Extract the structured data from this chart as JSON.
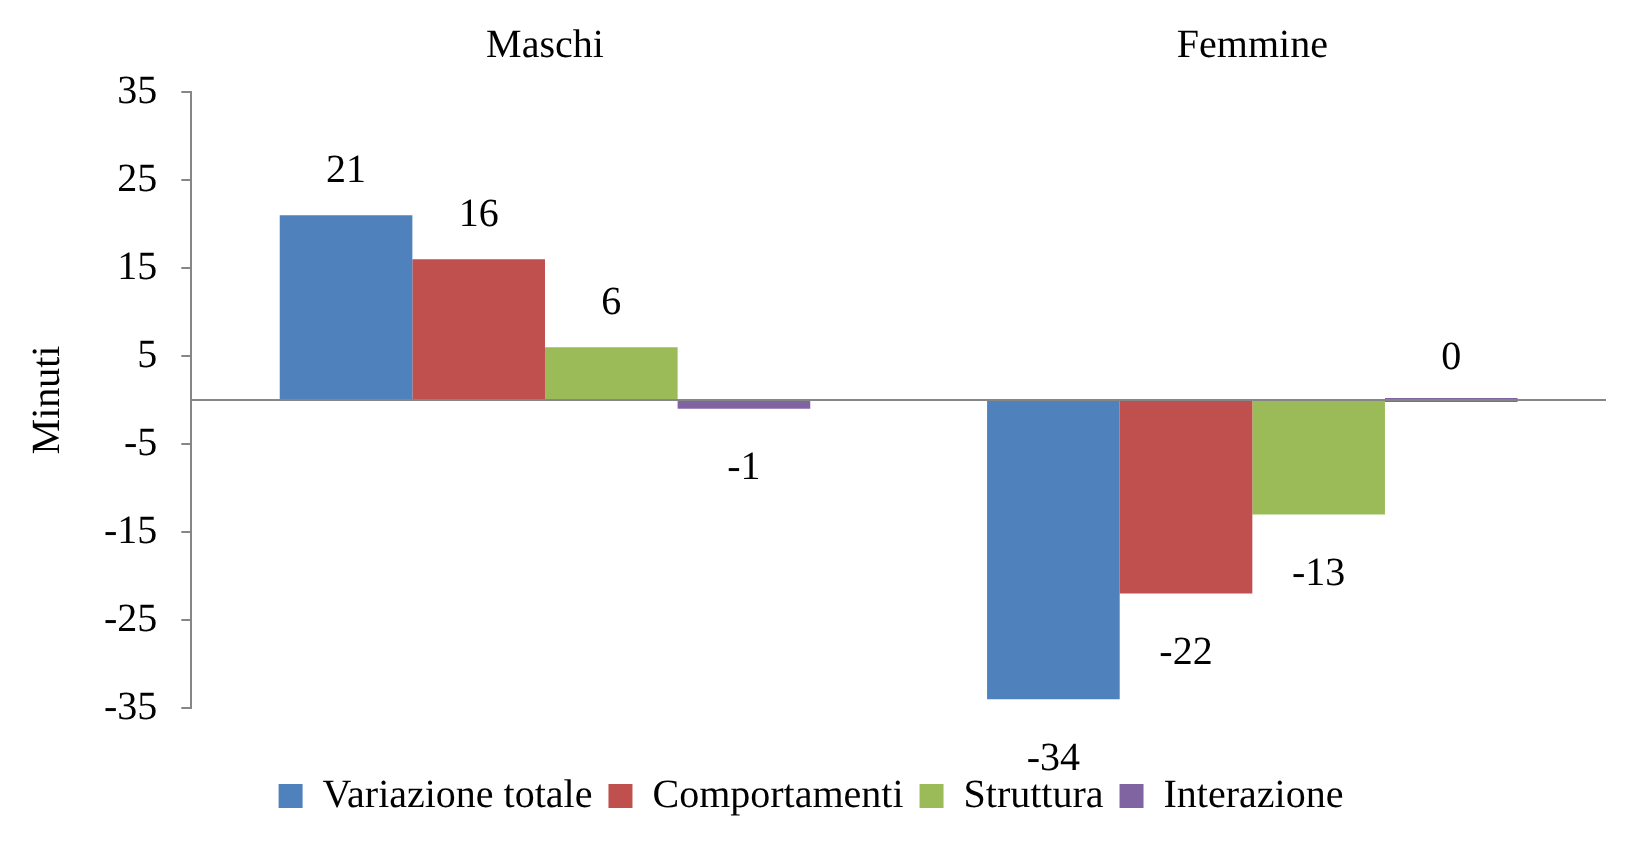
{
  "chart_data": {
    "type": "bar",
    "ylabel": "Minuti",
    "categories": [
      "Maschi",
      "Femmine"
    ],
    "series": [
      {
        "name": "Variazione totale",
        "color": "#4f81bd",
        "values": [
          21,
          -34
        ]
      },
      {
        "name": "Comportamenti",
        "color": "#c0504d",
        "values": [
          16,
          -22
        ]
      },
      {
        "name": "Struttura",
        "color": "#9bbb59",
        "values": [
          6,
          -13
        ]
      },
      {
        "name": "Interazione",
        "color": "#8064a2",
        "values": [
          -1,
          0
        ]
      }
    ],
    "ylim": [
      -35,
      35
    ],
    "yticks": [
      -35,
      -25,
      -15,
      -5,
      5,
      15,
      25,
      35
    ],
    "grid": false,
    "legend": "bottom",
    "data_labels": true
  }
}
